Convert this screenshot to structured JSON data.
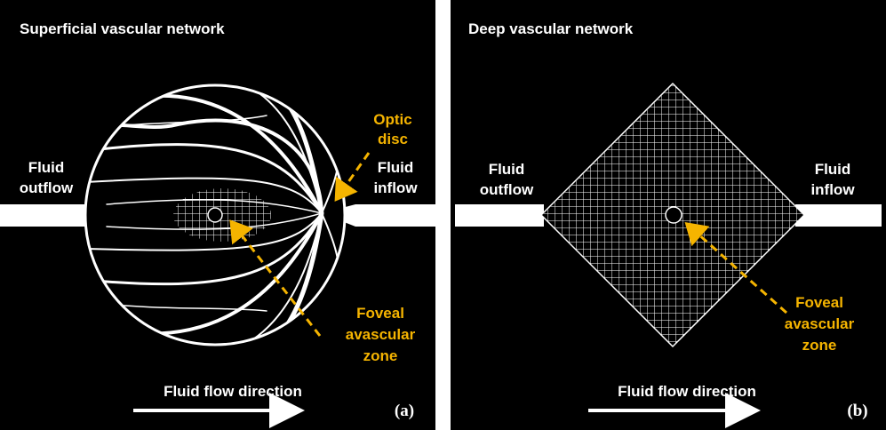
{
  "panels": [
    {
      "title": "Superficial vascular network",
      "outflow": [
        "Fluid",
        "outflow"
      ],
      "inflow": [
        "Fluid",
        "inflow"
      ],
      "optic_disc": [
        "Optic",
        "disc"
      ],
      "fovea": [
        "Foveal",
        "avascular",
        "zone"
      ],
      "flow_direction": "Fluid flow direction",
      "tag": "(a)"
    },
    {
      "title": "Deep vascular network",
      "outflow": [
        "Fluid",
        "outflow"
      ],
      "inflow": [
        "Fluid",
        "inflow"
      ],
      "fovea": [
        "Foveal",
        "avascular",
        "zone"
      ],
      "flow_direction": "Fluid flow direction",
      "tag": "(b)"
    }
  ]
}
